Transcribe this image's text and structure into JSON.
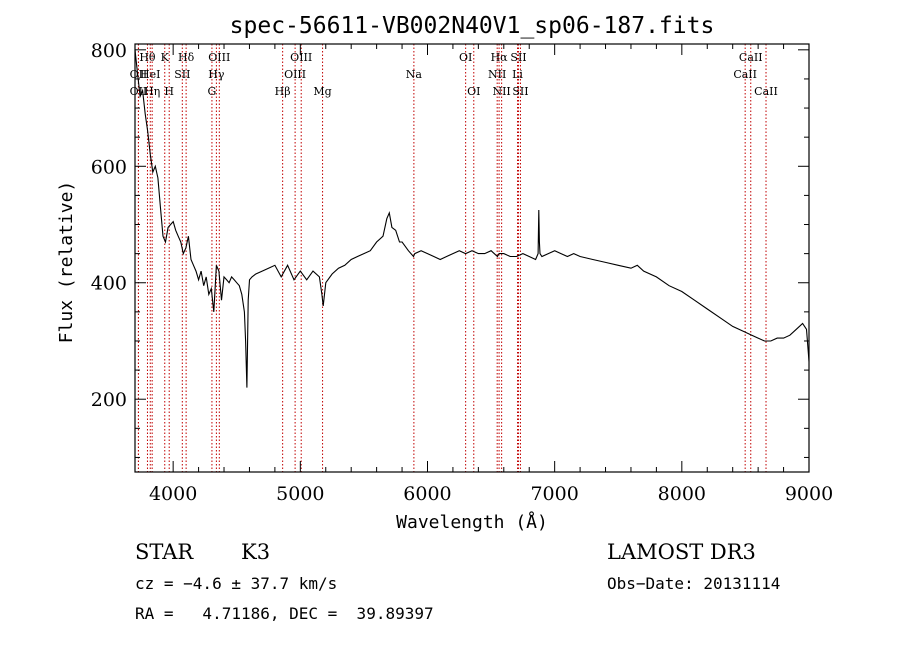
{
  "chart_data": {
    "type": "line",
    "title": "spec-56611-VB002N40V1_sp06-187.fits",
    "xlabel": "Wavelength (Å)",
    "ylabel": "Flux (relative)",
    "xlim": [
      3700,
      9000
    ],
    "ylim": [
      75,
      810
    ],
    "xticks": [
      4000,
      5000,
      6000,
      7000,
      8000,
      9000
    ],
    "yticks": [
      200,
      400,
      600,
      800
    ],
    "series": [
      {
        "name": "spectrum",
        "x": [
          3700,
          3720,
          3740,
          3760,
          3780,
          3800,
          3820,
          3840,
          3860,
          3880,
          3900,
          3920,
          3940,
          3960,
          3980,
          4000,
          4020,
          4040,
          4060,
          4080,
          4100,
          4120,
          4140,
          4160,
          4180,
          4200,
          4220,
          4240,
          4260,
          4280,
          4300,
          4320,
          4340,
          4360,
          4380,
          4400,
          4420,
          4440,
          4460,
          4480,
          4500,
          4520,
          4540,
          4560,
          4570,
          4580,
          4590,
          4600,
          4620,
          4650,
          4700,
          4750,
          4800,
          4850,
          4900,
          4950,
          5000,
          5050,
          5100,
          5150,
          5170,
          5180,
          5200,
          5250,
          5300,
          5350,
          5400,
          5450,
          5500,
          5550,
          5600,
          5650,
          5680,
          5700,
          5720,
          5750,
          5780,
          5800,
          5850,
          5890,
          5900,
          5950,
          6000,
          6050,
          6100,
          6150,
          6200,
          6250,
          6300,
          6350,
          6400,
          6450,
          6500,
          6550,
          6563,
          6600,
          6650,
          6700,
          6750,
          6800,
          6850,
          6870,
          6875,
          6880,
          6885,
          6900,
          6950,
          7000,
          7050,
          7100,
          7150,
          7200,
          7300,
          7400,
          7500,
          7600,
          7650,
          7700,
          7800,
          7900,
          8000,
          8100,
          8200,
          8300,
          8400,
          8500,
          8550,
          8600,
          8650,
          8700,
          8750,
          8800,
          8850,
          8900,
          8950,
          8980,
          9000
        ],
        "values": [
          800,
          760,
          720,
          730,
          690,
          660,
          620,
          590,
          600,
          580,
          530,
          480,
          470,
          495,
          500,
          505,
          490,
          480,
          470,
          450,
          460,
          480,
          440,
          430,
          420,
          405,
          420,
          395,
          410,
          380,
          390,
          350,
          430,
          420,
          370,
          410,
          405,
          400,
          410,
          405,
          400,
          395,
          380,
          350,
          300,
          220,
          370,
          405,
          410,
          415,
          420,
          425,
          430,
          410,
          430,
          405,
          420,
          405,
          420,
          410,
          380,
          360,
          400,
          415,
          425,
          430,
          440,
          445,
          450,
          455,
          470,
          480,
          510,
          520,
          495,
          490,
          470,
          470,
          455,
          445,
          450,
          455,
          450,
          445,
          440,
          445,
          450,
          455,
          450,
          455,
          450,
          450,
          455,
          445,
          450,
          450,
          445,
          445,
          450,
          445,
          440,
          450,
          525,
          470,
          450,
          445,
          450,
          455,
          450,
          445,
          450,
          445,
          440,
          435,
          430,
          425,
          430,
          420,
          410,
          395,
          385,
          370,
          355,
          340,
          325,
          315,
          310,
          305,
          300,
          300,
          305,
          305,
          310,
          320,
          330,
          320,
          265
        ]
      }
    ],
    "spectral_lines": [
      {
        "label": "Hθ",
        "x": 3798,
        "row": 1
      },
      {
        "label": "OII",
        "x": 3727,
        "row": 2
      },
      {
        "label": "OII",
        "x": 3727,
        "row": 3
      },
      {
        "label": "HeI",
        "x": 3820,
        "row": 2
      },
      {
        "label": "Hη",
        "x": 3835,
        "row": 3
      },
      {
        "label": "K",
        "x": 3934,
        "row": 1
      },
      {
        "label": "H",
        "x": 3969,
        "row": 3
      },
      {
        "label": "SII",
        "x": 4072,
        "row": 2
      },
      {
        "label": "Hδ",
        "x": 4102,
        "row": 1
      },
      {
        "label": "OIII",
        "x": 4363,
        "row": 1
      },
      {
        "label": "Hγ",
        "x": 4340,
        "row": 2
      },
      {
        "label": "G",
        "x": 4305,
        "row": 3
      },
      {
        "label": "Hβ",
        "x": 4861,
        "row": 3
      },
      {
        "label": "OIII",
        "x": 5007,
        "row": 1
      },
      {
        "label": "OIII",
        "x": 4959,
        "row": 2
      },
      {
        "label": "Mg",
        "x": 5175,
        "row": 3
      },
      {
        "label": "Na",
        "x": 5893,
        "row": 2
      },
      {
        "label": "OI",
        "x": 6300,
        "row": 1
      },
      {
        "label": "OI",
        "x": 6364,
        "row": 3
      },
      {
        "label": "Hα",
        "x": 6563,
        "row": 1
      },
      {
        "label": "NII",
        "x": 6548,
        "row": 2
      },
      {
        "label": "NII",
        "x": 6583,
        "row": 3
      },
      {
        "label": "SII",
        "x": 6716,
        "row": 1
      },
      {
        "label": "Li",
        "x": 6708,
        "row": 2
      },
      {
        "label": "SII",
        "x": 6731,
        "row": 3
      },
      {
        "label": "CaII",
        "x": 8542,
        "row": 1
      },
      {
        "label": "CaII",
        "x": 8498,
        "row": 2
      },
      {
        "label": "CaII",
        "x": 8662,
        "row": 3
      }
    ]
  },
  "footer": {
    "object_class": "STAR",
    "subclass": "K3",
    "survey": "LAMOST DR3",
    "redshift_line": "cz = −4.6 ± 37.7 km/s",
    "obs_date_line": "Obs−Date: 20131114",
    "coords_line": "RA =   4.71186, DEC =  39.89397"
  },
  "colors": {
    "spectrum": "#000000",
    "line_markers": "#c00000",
    "axes": "#000000"
  }
}
